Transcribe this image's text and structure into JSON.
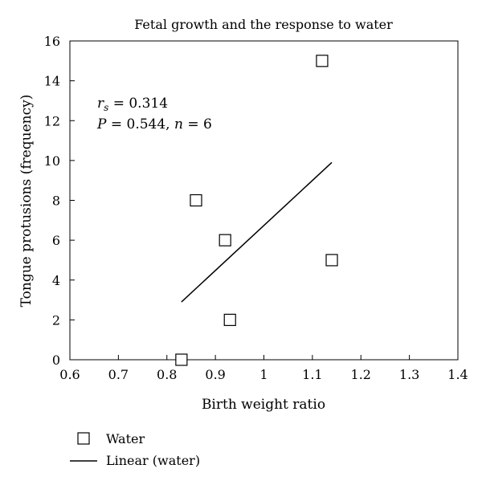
{
  "chart_data": {
    "type": "scatter",
    "title": "Fetal growth and the response to water",
    "xlabel": "Birth weight ratio",
    "ylabel": "Tongue protusions (frequency)",
    "xlim": [
      0.6,
      1.4
    ],
    "ylim": [
      0,
      16
    ],
    "x_ticks": [
      0.6,
      0.7,
      0.8,
      0.9,
      1,
      1.1,
      1.2,
      1.3,
      1.4
    ],
    "y_ticks": [
      0,
      2,
      4,
      6,
      8,
      10,
      12,
      14,
      16
    ],
    "x_tick_labels": [
      "0.6",
      "0.7",
      "0.8",
      "0.9",
      "1",
      "1.1",
      "1.2",
      "1.3",
      "1.4"
    ],
    "y_tick_labels": [
      "0",
      "2",
      "4",
      "6",
      "8",
      "10",
      "12",
      "14",
      "16"
    ],
    "grid": false,
    "legend_position": "bottom-left",
    "annotations": {
      "line1_sym": "r",
      "line1_sub": "s",
      "line1_rest": " = 0.314",
      "line2_P": "P",
      "line2_mid": " = 0.544, ",
      "line2_n": "n",
      "line2_end": " = 6"
    },
    "series": [
      {
        "name": "Water",
        "marker": "square-open",
        "points": [
          {
            "x": 0.83,
            "y": 0
          },
          {
            "x": 0.86,
            "y": 8
          },
          {
            "x": 0.92,
            "y": 6
          },
          {
            "x": 0.93,
            "y": 2
          },
          {
            "x": 1.12,
            "y": 15
          },
          {
            "x": 1.14,
            "y": 5
          }
        ]
      },
      {
        "name": "Linear (water)",
        "marker": "line",
        "points": [
          {
            "x": 0.83,
            "y": 2.9
          },
          {
            "x": 1.14,
            "y": 9.9
          }
        ]
      }
    ]
  }
}
